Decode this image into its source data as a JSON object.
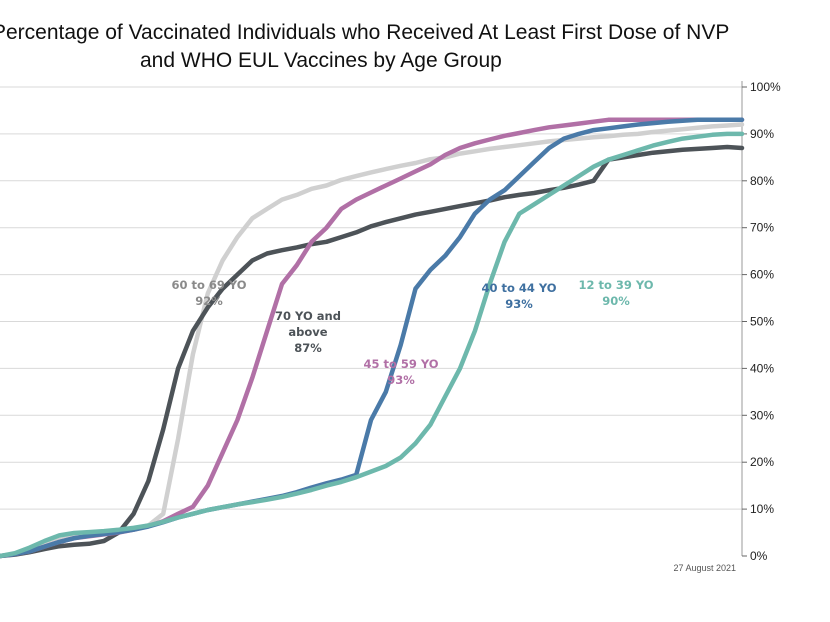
{
  "chart_data": {
    "type": "line",
    "title_lines": [
      "Percentage of Vaccinated Individuals who Received At Least First Dose of NVP",
      "and WHO EUL Vaccines by Age Group"
    ],
    "xlabel": "",
    "ylabel": "",
    "ylim": [
      0,
      100
    ],
    "y_ticks": [
      "0%",
      "10%",
      "20%",
      "30%",
      "40%",
      "50%",
      "60%",
      "70%",
      "80%",
      "90%",
      "100%"
    ],
    "y_axis_side": "right",
    "gridlines": "horizontal",
    "date_note": "27 August 2021",
    "x": [
      0,
      2,
      4,
      6,
      8,
      10,
      12,
      14,
      16,
      18,
      20,
      22,
      24,
      26,
      28,
      30,
      32,
      34,
      36,
      38,
      40,
      42,
      44,
      46,
      48,
      50,
      52,
      54,
      56,
      58,
      60,
      62,
      64,
      66,
      68,
      70,
      72,
      74,
      76,
      78,
      80,
      82,
      84,
      86,
      88,
      90,
      92,
      94,
      96,
      98,
      100
    ],
    "series": [
      {
        "label": "60 to 69 YO",
        "value_label": "92%",
        "color": "#d0d0d0",
        "values": [
          0,
          0.5,
          1.2,
          2.2,
          3.4,
          4.2,
          4.6,
          4.9,
          5.3,
          5.8,
          6.5,
          9,
          25,
          43,
          56,
          63,
          68,
          72,
          74,
          76,
          77,
          78.3,
          79,
          80.2,
          81,
          81.8,
          82.5,
          83.2,
          83.8,
          84.6,
          85,
          85.8,
          86.3,
          86.8,
          87.2,
          87.6,
          88,
          88.4,
          88.7,
          89,
          89.3,
          89.5,
          89.8,
          90,
          90.4,
          90.7,
          91,
          91.3,
          91.6,
          91.8,
          92
        ]
      },
      {
        "label": "70 YO and above",
        "value_label": "87%",
        "color": "#4d5358",
        "values": [
          0,
          0.3,
          0.8,
          1.5,
          2.1,
          2.4,
          2.6,
          3.2,
          5,
          9,
          16,
          27,
          40,
          48,
          53,
          57,
          60,
          63,
          64.5,
          65.2,
          65.8,
          66.5,
          67,
          68,
          69,
          70.3,
          71.2,
          72,
          72.8,
          73.4,
          74,
          74.6,
          75.2,
          75.8,
          76.5,
          77,
          77.4,
          78,
          78.5,
          79.2,
          80,
          84.5,
          85,
          85.5,
          86,
          86.3,
          86.6,
          86.8,
          87,
          87.2,
          87
        ]
      },
      {
        "label": "45 to 59 YO",
        "value_label": "93%",
        "color": "#b170a6",
        "values": [
          0,
          0.4,
          1,
          2,
          3,
          3.8,
          4.2,
          4.6,
          5,
          5.6,
          6.4,
          7.4,
          9,
          10.5,
          15,
          22,
          29,
          38,
          48,
          58,
          62,
          67,
          70,
          74,
          76,
          77.5,
          79,
          80.5,
          82,
          83.5,
          85.5,
          87,
          88,
          88.8,
          89.6,
          90.2,
          90.8,
          91.4,
          91.8,
          92.2,
          92.6,
          93,
          93,
          93,
          93,
          93,
          93,
          93,
          93,
          93,
          93
        ]
      },
      {
        "label": "40 to 44 YO",
        "value_label": "93%",
        "color": "#4a7aa8",
        "values": [
          0,
          0.4,
          1,
          2,
          3,
          3.8,
          4.3,
          4.7,
          5.1,
          5.6,
          6.3,
          7.2,
          8.2,
          9,
          9.8,
          10.4,
          11,
          11.6,
          12.2,
          12.8,
          13.6,
          14.6,
          15.5,
          16.3,
          17.3,
          29,
          35,
          45,
          57,
          61,
          64,
          68,
          73,
          76,
          78,
          81,
          84,
          87,
          89,
          90,
          90.8,
          91.2,
          91.6,
          92,
          92.3,
          92.6,
          92.8,
          93,
          93,
          93,
          93
        ]
      },
      {
        "label": "12 to 39 YO",
        "value_label": "90%",
        "color": "#6db8ac",
        "values": [
          0,
          0.6,
          1.8,
          3.2,
          4.4,
          4.9,
          5.1,
          5.3,
          5.6,
          6,
          6.5,
          7.3,
          8.2,
          9,
          9.8,
          10.4,
          11,
          11.5,
          12,
          12.6,
          13.3,
          14.1,
          15,
          15.8,
          16.8,
          18,
          19.2,
          21,
          24,
          28,
          34,
          40,
          48,
          58,
          67,
          73,
          75,
          77,
          79,
          81,
          83,
          84.5,
          85.5,
          86.5,
          87.5,
          88.3,
          89,
          89.4,
          89.8,
          90,
          90
        ]
      }
    ]
  }
}
